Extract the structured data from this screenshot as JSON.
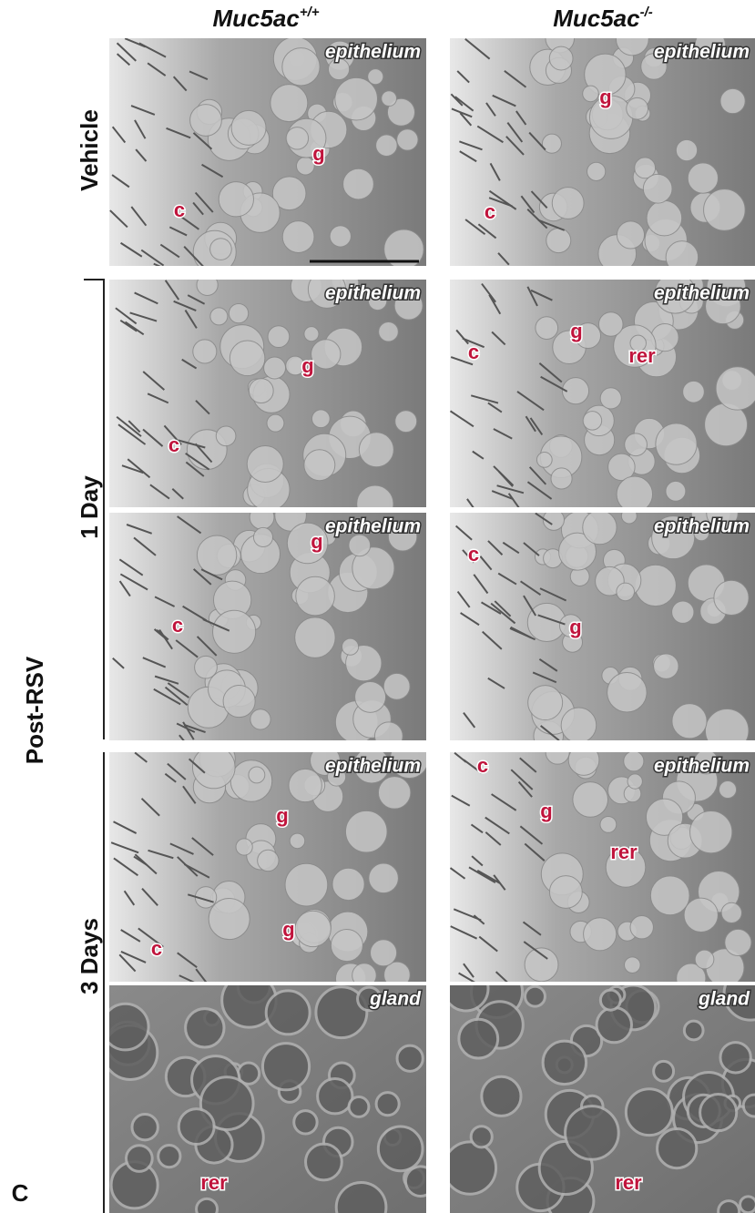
{
  "headers": [
    {
      "name": "Muc5ac",
      "sup": "+/+"
    },
    {
      "name": "Muc5ac",
      "sup": "-/-"
    }
  ],
  "rows": {
    "vehicle": "Vehicle",
    "day1": "1 Day",
    "day3": "3 Days",
    "group": "Post-RSV"
  },
  "panel_letter": "C",
  "panels": [
    {
      "label": "epithelium",
      "marks": [
        "g",
        "c"
      ]
    },
    {
      "label": "epithelium",
      "marks": [
        "g",
        "c"
      ]
    },
    {
      "label": "epithelium",
      "marks": [
        "g",
        "c"
      ]
    },
    {
      "label": "epithelium",
      "marks": [
        "c",
        "g",
        "rer"
      ]
    },
    {
      "label": "epithelium",
      "marks": [
        "g",
        "c"
      ]
    },
    {
      "label": "epithelium",
      "marks": [
        "c",
        "g"
      ]
    },
    {
      "label": "epithelium",
      "marks": [
        "g",
        "c",
        "g"
      ]
    },
    {
      "label": "epithelium",
      "marks": [
        "c",
        "g",
        "rer"
      ]
    },
    {
      "label": "gland",
      "marks": [
        "rer"
      ]
    },
    {
      "label": "gland",
      "marks": [
        "rer"
      ]
    }
  ]
}
